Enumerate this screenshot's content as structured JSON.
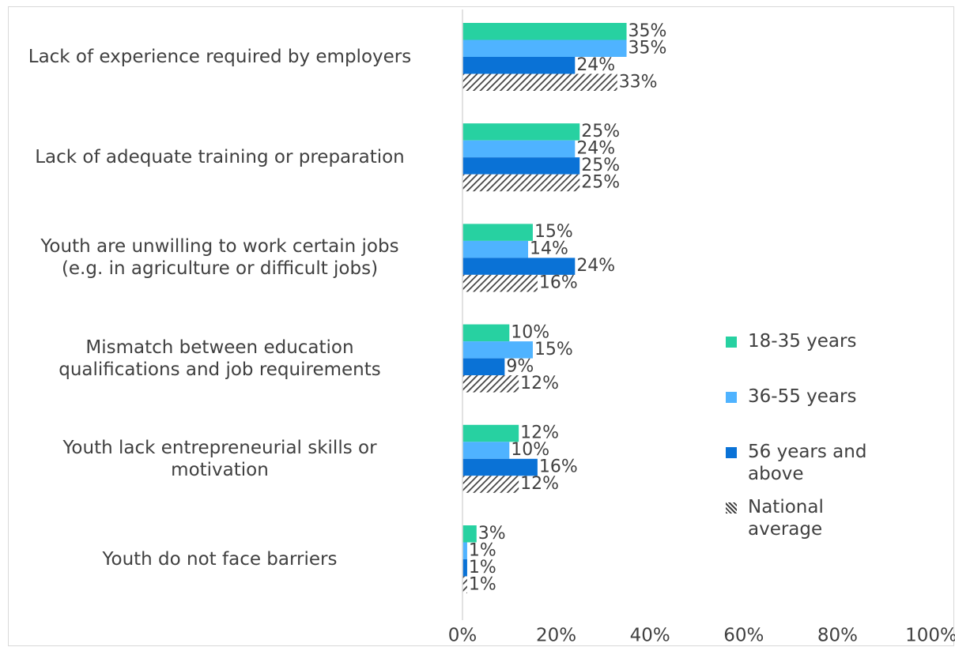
{
  "chart_data": {
    "type": "bar",
    "orientation": "horizontal",
    "categories": [
      "Lack of experience required by employers",
      "Lack of adequate training or preparation",
      "Youth are unwilling to work certain jobs (e.g. in agriculture or difficult jobs)",
      "Mismatch between education qualifications and job requirements",
      "Youth lack entrepreneurial skills or motivation",
      "Youth do not face barriers"
    ],
    "category_lines": [
      [
        "Lack of experience required by employers"
      ],
      [
        "Lack of adequate training or preparation"
      ],
      [
        "Youth are unwilling to work certain jobs",
        "(e.g. in agriculture or difficult jobs)"
      ],
      [
        "Mismatch between education",
        "qualifications and job requirements"
      ],
      [
        "Youth lack entrepreneurial skills or",
        "motivation"
      ],
      [
        "Youth do not face barriers"
      ]
    ],
    "series": [
      {
        "name": "18-35 years",
        "color": "#27d1a1",
        "pattern": "solid",
        "values": [
          35,
          25,
          15,
          10,
          12,
          3
        ]
      },
      {
        "name": "36-55 years",
        "color": "#4fb3ff",
        "pattern": "solid",
        "values": [
          35,
          24,
          14,
          15,
          10,
          1
        ]
      },
      {
        "name": "56 years and above",
        "color": "#0a72d6",
        "pattern": "solid",
        "values": [
          24,
          25,
          24,
          9,
          16,
          1
        ]
      },
      {
        "name": "National average",
        "color": "#404040",
        "pattern": "hatched",
        "values": [
          33,
          25,
          16,
          12,
          12,
          1
        ]
      }
    ],
    "legend_lines": [
      [
        "18-35 years"
      ],
      [
        "36-55 years"
      ],
      [
        "56 years and",
        "above"
      ],
      [
        "National",
        "average"
      ]
    ],
    "value_suffix": "%",
    "xlim": [
      0,
      100
    ],
    "xticks": [
      "0%",
      "20%",
      "40%",
      "60%",
      "80%",
      "100%"
    ],
    "xtick_values": [
      0,
      20,
      40,
      60,
      80,
      100
    ],
    "grid": false,
    "legend_position": "right",
    "title": "",
    "xlabel": "",
    "ylabel": ""
  }
}
